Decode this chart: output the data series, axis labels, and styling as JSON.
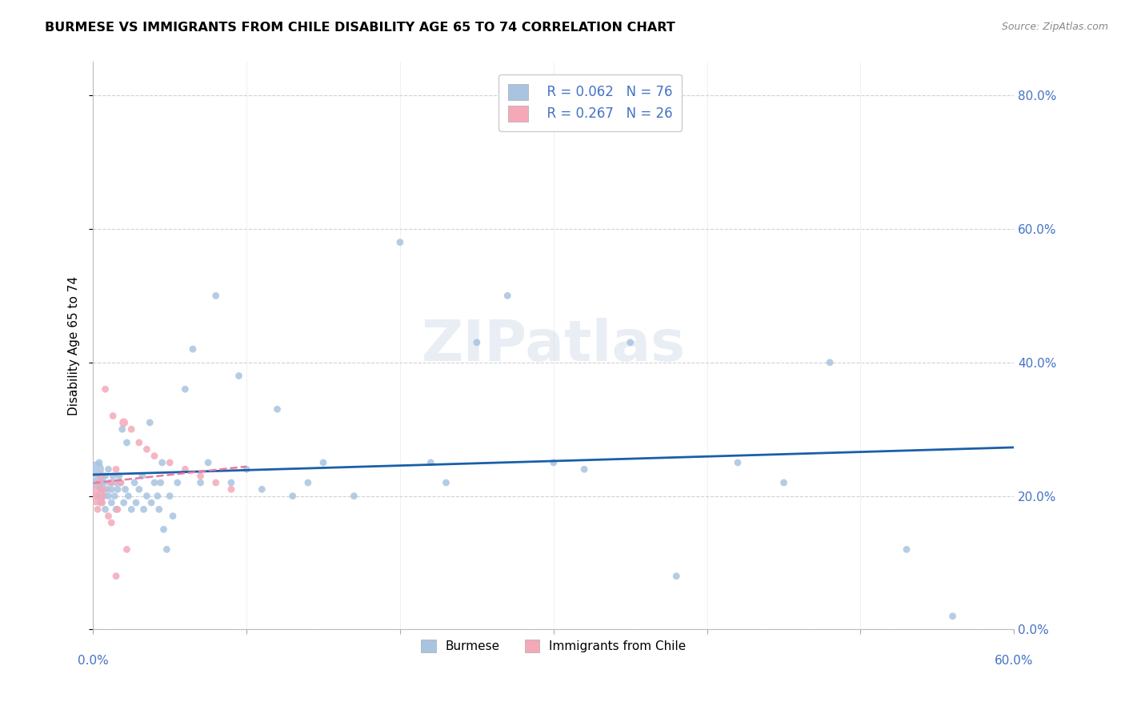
{
  "title": "BURMESE VS IMMIGRANTS FROM CHILE DISABILITY AGE 65 TO 74 CORRELATION CHART",
  "source": "Source: ZipAtlas.com",
  "ylabel": "Disability Age 65 to 74",
  "x_lim": [
    0.0,
    0.6
  ],
  "y_lim": [
    0.0,
    0.85
  ],
  "color_blue": "#a8c4e0",
  "color_pink": "#f4a8b8",
  "trendline_blue": "#1a5fa8",
  "trendline_pink": "#e87aa0",
  "watermark": "ZIPatlas",
  "burmese_x": [
    0.002,
    0.003,
    0.003,
    0.004,
    0.005,
    0.005,
    0.006,
    0.007,
    0.007,
    0.008,
    0.008,
    0.009,
    0.01,
    0.01,
    0.011,
    0.012,
    0.012,
    0.013,
    0.014,
    0.015,
    0.015,
    0.016,
    0.017,
    0.018,
    0.019,
    0.02,
    0.021,
    0.022,
    0.023,
    0.025,
    0.027,
    0.028,
    0.03,
    0.032,
    0.033,
    0.035,
    0.037,
    0.038,
    0.04,
    0.042,
    0.043,
    0.044,
    0.045,
    0.046,
    0.048,
    0.05,
    0.052,
    0.055,
    0.06,
    0.065,
    0.07,
    0.075,
    0.08,
    0.09,
    0.095,
    0.1,
    0.11,
    0.12,
    0.13,
    0.14,
    0.15,
    0.17,
    0.2,
    0.22,
    0.23,
    0.25,
    0.27,
    0.3,
    0.32,
    0.35,
    0.38,
    0.42,
    0.45,
    0.48,
    0.53,
    0.56
  ],
  "burmese_y": [
    0.24,
    0.22,
    0.2,
    0.25,
    0.21,
    0.19,
    0.23,
    0.2,
    0.22,
    0.18,
    0.23,
    0.21,
    0.24,
    0.2,
    0.22,
    0.19,
    0.21,
    0.23,
    0.2,
    0.22,
    0.18,
    0.21,
    0.23,
    0.22,
    0.3,
    0.19,
    0.21,
    0.28,
    0.2,
    0.18,
    0.22,
    0.19,
    0.21,
    0.23,
    0.18,
    0.2,
    0.31,
    0.19,
    0.22,
    0.2,
    0.18,
    0.22,
    0.25,
    0.15,
    0.12,
    0.2,
    0.17,
    0.22,
    0.36,
    0.42,
    0.22,
    0.25,
    0.5,
    0.22,
    0.38,
    0.24,
    0.21,
    0.33,
    0.2,
    0.22,
    0.25,
    0.2,
    0.58,
    0.25,
    0.22,
    0.43,
    0.5,
    0.25,
    0.24,
    0.43,
    0.08,
    0.25,
    0.22,
    0.4,
    0.12,
    0.02
  ],
  "burmese_size": [
    200,
    120,
    40,
    40,
    40,
    40,
    40,
    40,
    40,
    40,
    40,
    40,
    40,
    40,
    40,
    40,
    40,
    40,
    40,
    40,
    40,
    40,
    40,
    40,
    40,
    40,
    40,
    40,
    40,
    40,
    40,
    40,
    40,
    40,
    40,
    40,
    40,
    40,
    40,
    40,
    40,
    40,
    40,
    40,
    40,
    40,
    40,
    40,
    40,
    40,
    40,
    40,
    40,
    40,
    40,
    40,
    40,
    40,
    40,
    40,
    40,
    40,
    40,
    40,
    40,
    40,
    40,
    40,
    40,
    40,
    40,
    40,
    40,
    40,
    40,
    40
  ],
  "chile_x": [
    0.002,
    0.003,
    0.004,
    0.005,
    0.006,
    0.007,
    0.008,
    0.01,
    0.012,
    0.013,
    0.015,
    0.016,
    0.018,
    0.02,
    0.022,
    0.025,
    0.03,
    0.035,
    0.04,
    0.05,
    0.06,
    0.07,
    0.08,
    0.09,
    0.015,
    0.012
  ],
  "chile_y": [
    0.2,
    0.18,
    0.22,
    0.23,
    0.19,
    0.21,
    0.36,
    0.17,
    0.22,
    0.32,
    0.24,
    0.18,
    0.22,
    0.31,
    0.12,
    0.3,
    0.28,
    0.27,
    0.26,
    0.25,
    0.24,
    0.23,
    0.22,
    0.21,
    0.08,
    0.16
  ],
  "chile_size": [
    280,
    40,
    40,
    40,
    40,
    40,
    40,
    40,
    40,
    40,
    40,
    40,
    40,
    60,
    40,
    40,
    40,
    40,
    40,
    40,
    40,
    40,
    40,
    40,
    40,
    40
  ]
}
